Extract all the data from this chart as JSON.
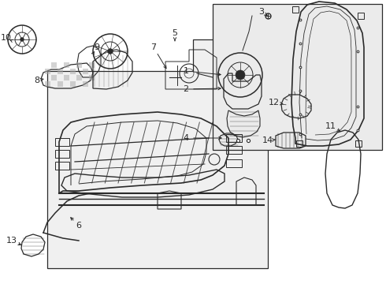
{
  "bg_color": "#ffffff",
  "line_color": "#2a2a2a",
  "box_fill": "#f2f2f2",
  "figsize": [
    4.9,
    3.6
  ],
  "dpi": 100,
  "xlim": [
    0,
    490
  ],
  "ylim": [
    0,
    360
  ]
}
